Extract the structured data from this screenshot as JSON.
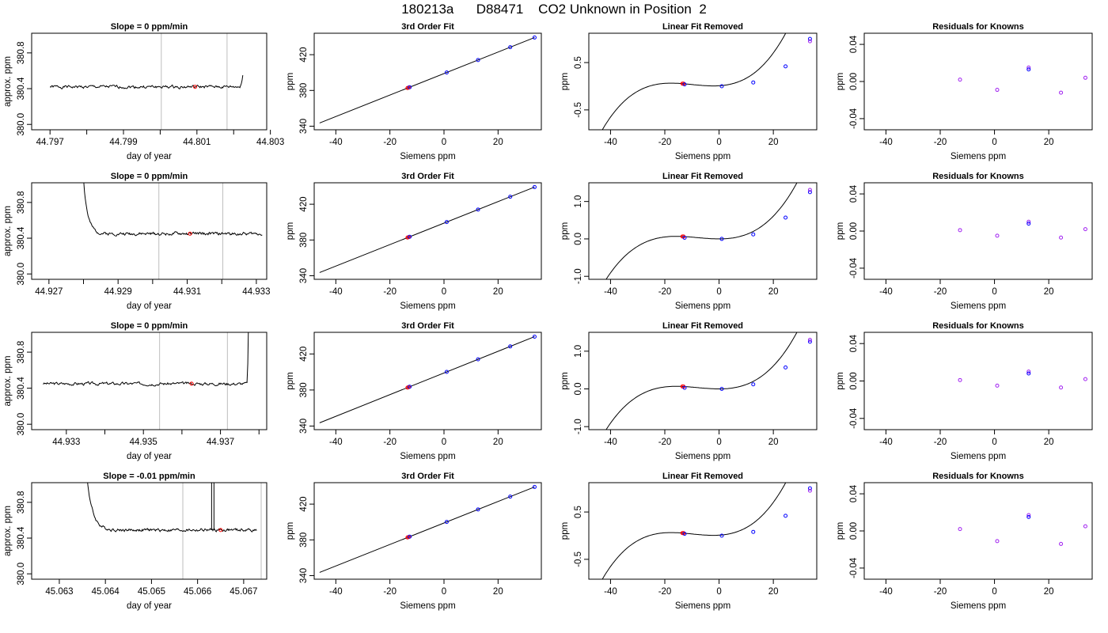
{
  "main_title": "180213a      D88471    CO2 Unknown in Position  2",
  "colors": {
    "line": "#000000",
    "vline": "#bebebe",
    "known_point": "#0000ff",
    "unknown_point": "#ff0000",
    "residual_point": "#a020f0"
  },
  "chart_data": [
    {
      "type": "line",
      "row": 0,
      "kind": "timeseries",
      "title": "Slope =  0  ppm/min",
      "xlabel": "day of year",
      "ylabel": "approx. ppm",
      "xlim": [
        44.7965,
        44.8029
      ],
      "ylim": [
        379.94,
        381.02
      ],
      "xticks": [
        44.797,
        44.799,
        44.801,
        44.803
      ],
      "xtick_labels": [
        "44.797",
        "44.799",
        "44.801",
        "44.803"
      ],
      "xticks_minor": [
        44.798,
        44.8,
        44.802
      ],
      "yticks": [
        380.0,
        380.4,
        380.8
      ],
      "ytick_labels": [
        "380.0",
        "380.4",
        "380.8"
      ],
      "vlines": [
        44.80003,
        44.80182
      ],
      "line_x_range": [
        44.797,
        44.80225
      ],
      "base": 380.42,
      "noise": 0.012,
      "seed": 1,
      "spike": {
        "start": 44.80215,
        "peak_x": 44.8025,
        "peak_y": 382.5,
        "side": "end"
      },
      "marker": {
        "x": 44.80095,
        "y": 380.42
      }
    },
    {
      "type": "scatter",
      "row": 0,
      "kind": "fit",
      "title": "3rd Order Fit",
      "xlabel": "Siemens ppm",
      "ylabel": "ppm",
      "xlim": [
        -48,
        36
      ],
      "ylim": [
        336,
        444
      ],
      "xticks": [
        -40,
        -20,
        0,
        20
      ],
      "yticks": [
        340,
        380,
        420
      ],
      "curve": {
        "x0": -46,
        "x1": 33.5,
        "y0": 398.9,
        "slope": 1.203,
        "cubic": 0
      },
      "known_x": [
        -12.7,
        1.0,
        12.6,
        24.5,
        33.5
      ],
      "unknown_x": [
        -13.5,
        -13.1
      ]
    },
    {
      "type": "scatter",
      "row": 0,
      "kind": "linres",
      "title": "Linear Fit Removed",
      "xlabel": "Siemens ppm",
      "ylabel": "ppm",
      "xlim": [
        -48,
        36
      ],
      "ylim": [
        -0.92,
        1.12
      ],
      "xticks": [
        -40,
        -20,
        0,
        20
      ],
      "yticks": [
        -0.5,
        0.5
      ],
      "ytick_labels": [
        "-0.5",
        "0.5"
      ],
      "poly": {
        "a": 0.01,
        "b": 0.0035,
        "c": 0.00093,
        "d": 3.14e-05
      },
      "x_range": [
        -46,
        33.5
      ],
      "known_x": [
        -12.7,
        1.0,
        12.6,
        24.5,
        33.5
      ],
      "known_y": [
        0.04,
        0.0,
        0.08,
        0.42,
        1.0
      ],
      "extra_known": [
        {
          "x": 33.5,
          "y": 0.95
        }
      ],
      "unknown_x": [
        -13.5,
        -13.1
      ]
    },
    {
      "type": "scatter",
      "row": 0,
      "kind": "resid",
      "title": "Residuals for Knowns",
      "xlabel": "Siemens ppm",
      "ylabel": "ppm",
      "xlim": [
        -48,
        36
      ],
      "ylim": [
        -0.052,
        0.052
      ],
      "xticks": [
        -40,
        -20,
        0,
        20
      ],
      "yticks": [
        -0.04,
        0.0,
        0.04
      ],
      "ytick_labels": [
        "-0.04",
        "0.00",
        "0.04"
      ],
      "points_x": [
        -12.7,
        1.0,
        12.6,
        24.5,
        33.5
      ],
      "points_y": [
        0.002,
        -0.009,
        0.015,
        -0.012,
        0.004
      ],
      "extra_points": [
        {
          "x": 12.6,
          "y": 0.013
        }
      ]
    },
    {
      "type": "line",
      "row": 1,
      "kind": "timeseries",
      "title": "Slope =  0  ppm/min",
      "xlabel": "day of year",
      "ylabel": "approx. ppm",
      "xlim": [
        44.9265,
        44.9333
      ],
      "ylim": [
        379.94,
        381.02
      ],
      "xticks": [
        44.927,
        44.929,
        44.931,
        44.933
      ],
      "xtick_labels": [
        "44.927",
        "44.929",
        "44.931",
        "44.933"
      ],
      "xticks_minor": [
        44.928,
        44.93,
        44.932
      ],
      "yticks": [
        380.0,
        380.4,
        380.8
      ],
      "ytick_labels": [
        "380.0",
        "380.4",
        "380.8"
      ],
      "vlines": [
        44.93018,
        44.93203
      ],
      "line_x_range": [
        44.92795,
        44.93317
      ],
      "base": 380.45,
      "noise": 0.012,
      "seed": 2,
      "spike": {
        "start": 44.92795,
        "end": 44.92835,
        "peak_x": 44.92795,
        "peak_y": 382.0,
        "side": "start",
        "tau": 0.00012
      },
      "marker": {
        "x": 44.93108,
        "y": 380.45
      }
    },
    {
      "type": "scatter",
      "row": 1,
      "kind": "fit",
      "title": "3rd Order Fit",
      "xlabel": "Siemens ppm",
      "ylabel": "ppm",
      "xlim": [
        -48,
        36
      ],
      "ylim": [
        336,
        444
      ],
      "xticks": [
        -40,
        -20,
        0,
        20
      ],
      "yticks": [
        340,
        380,
        420
      ],
      "curve": {
        "x0": -46,
        "x1": 33.5,
        "y0": 398.9,
        "slope": 1.203,
        "cubic": 0
      },
      "known_x": [
        -12.7,
        1.0,
        12.6,
        24.5,
        33.5
      ],
      "unknown_x": [
        -13.5,
        -13.1
      ]
    },
    {
      "type": "scatter",
      "row": 1,
      "kind": "linres",
      "title": "Linear Fit Removed",
      "xlabel": "Siemens ppm",
      "ylabel": "ppm",
      "xlim": [
        -48,
        36
      ],
      "ylim": [
        -1.08,
        1.5
      ],
      "xticks": [
        -40,
        -20,
        0,
        20
      ],
      "yticks": [
        -1.0,
        0.0,
        1.0
      ],
      "ytick_labels": [
        "-1.0",
        "0.0",
        "1.0"
      ],
      "poly": {
        "a": 0.0,
        "b": 0.0,
        "c": 0.000825,
        "d": 3.48e-05
      },
      "x_range": [
        -46,
        33.5
      ],
      "known_x": [
        -12.7,
        1.0,
        12.6,
        24.5,
        33.5
      ],
      "known_y": [
        0.03,
        0.0,
        0.12,
        0.57,
        1.25
      ],
      "extra_known": [
        {
          "x": 33.5,
          "y": 1.31
        }
      ],
      "unknown_x": [
        -13.5,
        -13.1
      ]
    },
    {
      "type": "scatter",
      "row": 1,
      "kind": "resid",
      "title": "Residuals for Knowns",
      "xlabel": "Siemens ppm",
      "ylabel": "ppm",
      "xlim": [
        -48,
        36
      ],
      "ylim": [
        -0.052,
        0.052
      ],
      "xticks": [
        -40,
        -20,
        0,
        20
      ],
      "yticks": [
        -0.04,
        0.0,
        0.04
      ],
      "ytick_labels": [
        "-0.04",
        "0.00",
        "0.04"
      ],
      "points_x": [
        -12.7,
        1.0,
        12.6,
        24.5,
        33.5
      ],
      "points_y": [
        0.001,
        -0.005,
        0.01,
        -0.007,
        0.002
      ],
      "extra_points": [
        {
          "x": 12.6,
          "y": 0.008
        }
      ]
    },
    {
      "type": "line",
      "row": 2,
      "kind": "timeseries",
      "title": "Slope =  0  ppm/min",
      "xlabel": "day of year",
      "ylabel": "approx. ppm",
      "xlim": [
        44.9321,
        44.9382
      ],
      "ylim": [
        379.94,
        381.02
      ],
      "xticks": [
        44.933,
        44.935,
        44.937
      ],
      "xtick_labels": [
        "44.933",
        "44.935",
        "44.937"
      ],
      "xticks_minor": [
        44.934,
        44.936,
        44.938
      ],
      "yticks": [
        380.0,
        380.4,
        380.8
      ],
      "ytick_labels": [
        "380.0",
        "380.4",
        "380.8"
      ],
      "vlines": [
        44.93542,
        44.93718
      ],
      "line_x_range": [
        44.9324,
        44.93775
      ],
      "base": 380.45,
      "noise": 0.012,
      "seed": 3,
      "spike": {
        "start": 44.93768,
        "peak_x": 44.93775,
        "peak_y": 382.0,
        "side": "end"
      },
      "marker": {
        "x": 44.93625,
        "y": 380.45
      }
    },
    {
      "type": "scatter",
      "row": 2,
      "kind": "fit",
      "title": "3rd Order Fit",
      "xlabel": "Siemens ppm",
      "ylabel": "ppm",
      "xlim": [
        -48,
        36
      ],
      "ylim": [
        336,
        444
      ],
      "xticks": [
        -40,
        -20,
        0,
        20
      ],
      "yticks": [
        340,
        380,
        420
      ],
      "curve": {
        "x0": -46,
        "x1": 33.5,
        "y0": 398.9,
        "slope": 1.203,
        "cubic": 0
      },
      "known_x": [
        -12.7,
        1.0,
        12.6,
        24.5,
        33.5
      ],
      "unknown_x": [
        -13.5,
        -13.1
      ]
    },
    {
      "type": "scatter",
      "row": 2,
      "kind": "linres",
      "title": "Linear Fit Removed",
      "xlabel": "Siemens ppm",
      "ylabel": "ppm",
      "xlim": [
        -48,
        36
      ],
      "ylim": [
        -1.08,
        1.5
      ],
      "xticks": [
        -40,
        -20,
        0,
        20
      ],
      "yticks": [
        -1.0,
        0.0,
        1.0
      ],
      "ytick_labels": [
        "-1.0",
        "0.0",
        "1.0"
      ],
      "poly": {
        "a": 0.0,
        "b": 0.0,
        "c": 0.000825,
        "d": 3.48e-05
      },
      "x_range": [
        -46,
        33.5
      ],
      "known_x": [
        -12.7,
        1.0,
        12.6,
        24.5,
        33.5
      ],
      "known_y": [
        0.03,
        0.0,
        0.12,
        0.57,
        1.25
      ],
      "extra_known": [
        {
          "x": 33.5,
          "y": 1.3
        }
      ],
      "unknown_x": [
        -13.5,
        -13.1
      ]
    },
    {
      "type": "scatter",
      "row": 2,
      "kind": "resid",
      "title": "Residuals for Knowns",
      "xlabel": "Siemens ppm",
      "ylabel": "ppm",
      "xlim": [
        -48,
        36
      ],
      "ylim": [
        -0.052,
        0.052
      ],
      "xticks": [
        -40,
        -20,
        0,
        20
      ],
      "yticks": [
        -0.04,
        0.0,
        0.04
      ],
      "ytick_labels": [
        "-0.04",
        "0.00",
        "0.04"
      ],
      "points_x": [
        -12.7,
        1.0,
        12.6,
        24.5,
        33.5
      ],
      "points_y": [
        0.001,
        -0.005,
        0.01,
        -0.007,
        0.002
      ],
      "extra_points": [
        {
          "x": 12.6,
          "y": 0.008
        }
      ]
    },
    {
      "type": "line",
      "row": 3,
      "kind": "timeseries",
      "title": "Slope =  -0.01  ppm/min",
      "xlabel": "day of year",
      "ylabel": "approx. ppm",
      "xlim": [
        45.0624,
        45.0675
      ],
      "ylim": [
        379.94,
        381.02
      ],
      "xticks": [
        45.063,
        45.064,
        45.065,
        45.066,
        45.067
      ],
      "xtick_labels": [
        "45.063",
        "45.064",
        "45.065",
        "45.066",
        "45.067"
      ],
      "xticks_minor": [],
      "yticks": [
        380.0,
        380.4,
        380.8
      ],
      "ytick_labels": [
        "380.0",
        "380.4",
        "380.8"
      ],
      "vlines": [
        45.06568,
        45.06738
      ],
      "line_x_range": [
        45.06355,
        45.06728
      ],
      "base": 380.49,
      "noise": 0.012,
      "seed": 4,
      "spike": {
        "start": 45.06355,
        "end": 45.06405,
        "peak_x": 45.06355,
        "peak_y": 382.0,
        "side": "start",
        "tau": 0.00012
      },
      "spike2": {
        "x": 45.06633,
        "peak_y": 382.0
      },
      "marker": {
        "x": 45.0665,
        "y": 380.49
      }
    },
    {
      "type": "scatter",
      "row": 3,
      "kind": "fit",
      "title": "3rd Order Fit",
      "xlabel": "Siemens ppm",
      "ylabel": "ppm",
      "xlim": [
        -48,
        36
      ],
      "ylim": [
        336,
        444
      ],
      "xticks": [
        -40,
        -20,
        0,
        20
      ],
      "yticks": [
        340,
        380,
        420
      ],
      "curve": {
        "x0": -46,
        "x1": 33.5,
        "y0": 398.9,
        "slope": 1.203,
        "cubic": 0
      },
      "known_x": [
        -12.7,
        1.0,
        12.6,
        24.5,
        33.5
      ],
      "unknown_x": [
        -13.5,
        -13.1
      ]
    },
    {
      "type": "scatter",
      "row": 3,
      "kind": "linres",
      "title": "Linear Fit Removed",
      "xlabel": "Siemens ppm",
      "ylabel": "ppm",
      "xlim": [
        -48,
        36
      ],
      "ylim": [
        -0.92,
        1.12
      ],
      "xticks": [
        -40,
        -20,
        0,
        20
      ],
      "yticks": [
        -0.5,
        0.5
      ],
      "ytick_labels": [
        "-0.5",
        "0.5"
      ],
      "poly": {
        "a": 0.01,
        "b": 0.0035,
        "c": 0.00093,
        "d": 3.14e-05
      },
      "x_range": [
        -46,
        33.5
      ],
      "known_x": [
        -12.7,
        1.0,
        12.6,
        24.5,
        33.5
      ],
      "known_y": [
        0.04,
        0.0,
        0.08,
        0.42,
        1.0
      ],
      "extra_known": [
        {
          "x": 33.5,
          "y": 0.95
        }
      ],
      "unknown_x": [
        -13.5,
        -13.1
      ]
    },
    {
      "type": "scatter",
      "row": 3,
      "kind": "resid",
      "title": "Residuals for Knowns",
      "xlabel": "Siemens ppm",
      "ylabel": "ppm",
      "xlim": [
        -48,
        36
      ],
      "ylim": [
        -0.052,
        0.052
      ],
      "xticks": [
        -40,
        -20,
        0,
        20
      ],
      "yticks": [
        -0.04,
        0.0,
        0.04
      ],
      "ytick_labels": [
        "-0.04",
        "0.00",
        "0.04"
      ],
      "points_x": [
        -12.7,
        1.0,
        12.6,
        24.5,
        33.5
      ],
      "points_y": [
        0.002,
        -0.011,
        0.017,
        -0.014,
        0.005
      ],
      "extra_points": [
        {
          "x": 12.6,
          "y": 0.015
        }
      ]
    }
  ]
}
